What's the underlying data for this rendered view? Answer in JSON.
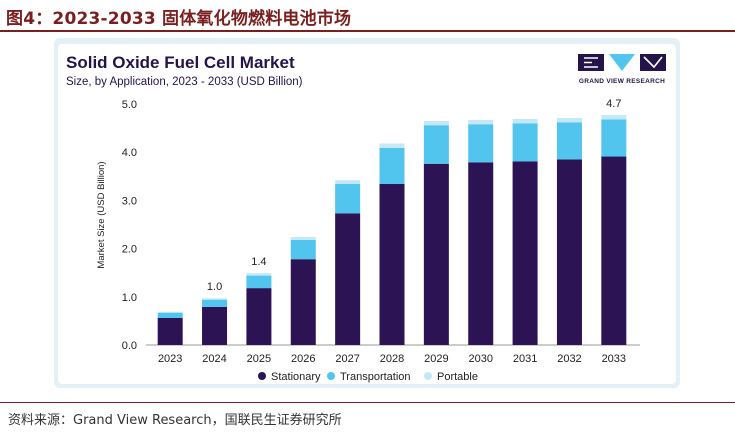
{
  "figure": {
    "title": "图4：2023-2033 固体氧化物燃料电池市场",
    "source": "资料来源：Grand View Research，国联民生证券研究所"
  },
  "brand": {
    "name": "GRAND VIEW RESEARCH"
  },
  "colors": {
    "stationary": "#2b1354",
    "transportation": "#52c5ee",
    "portable": "#c4e8f6",
    "title_red": "#7a1f1f"
  },
  "chart_data": {
    "type": "bar",
    "stacked": true,
    "title": "Solid Oxide Fuel Cell Market",
    "subtitle": "Size, by Application, 2023 - 2033 (USD Billion)",
    "xlabel": "",
    "ylabel": "Market Size (USD Billion)",
    "ylim": [
      0,
      5
    ],
    "yticks": [
      "0.0",
      "1.0",
      "2.0",
      "3.0",
      "4.0",
      "5.0"
    ],
    "grid": false,
    "legend_position": "bottom",
    "categories": [
      "2023",
      "2024",
      "2025",
      "2026",
      "2027",
      "2028",
      "2029",
      "2030",
      "2031",
      "2032",
      "2033"
    ],
    "series": [
      {
        "name": "Stationary",
        "values": [
          0.56,
          0.79,
          1.18,
          1.78,
          2.73,
          3.34,
          3.76,
          3.79,
          3.81,
          3.85,
          3.91
        ]
      },
      {
        "name": "Transportation",
        "values": [
          0.11,
          0.15,
          0.26,
          0.4,
          0.61,
          0.75,
          0.8,
          0.79,
          0.79,
          0.77,
          0.77
        ]
      },
      {
        "name": "Portable",
        "values": [
          0.02,
          0.03,
          0.05,
          0.06,
          0.08,
          0.09,
          0.09,
          0.09,
          0.09,
          0.09,
          0.09
        ]
      }
    ],
    "annotations": [
      {
        "category": "2024",
        "label": "1.0"
      },
      {
        "category": "2025",
        "label": "1.4"
      },
      {
        "category": "2033",
        "label": "4.7"
      }
    ]
  }
}
